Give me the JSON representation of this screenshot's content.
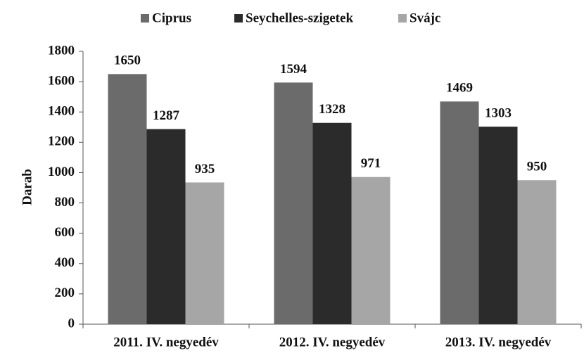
{
  "chart_data": {
    "type": "bar",
    "ylabel": "Darab",
    "categories": [
      "2011. IV. negyedév",
      "2012. IV. negyedév",
      "2013. IV. negyedév"
    ],
    "series": [
      {
        "name": "Ciprus",
        "color": "#6b6b6b",
        "values": [
          1650,
          1594,
          1469
        ]
      },
      {
        "name": "Seychelles-szigetek",
        "color": "#2b2b2b",
        "values": [
          1287,
          1328,
          1303
        ]
      },
      {
        "name": "Svájc",
        "color": "#a6a6a6",
        "values": [
          935,
          971,
          950
        ]
      }
    ],
    "ylim": [
      0,
      1800
    ],
    "yticks": [
      0,
      200,
      400,
      600,
      800,
      1000,
      1200,
      1400,
      1600,
      1800
    ],
    "grid": false,
    "legend": "top"
  }
}
